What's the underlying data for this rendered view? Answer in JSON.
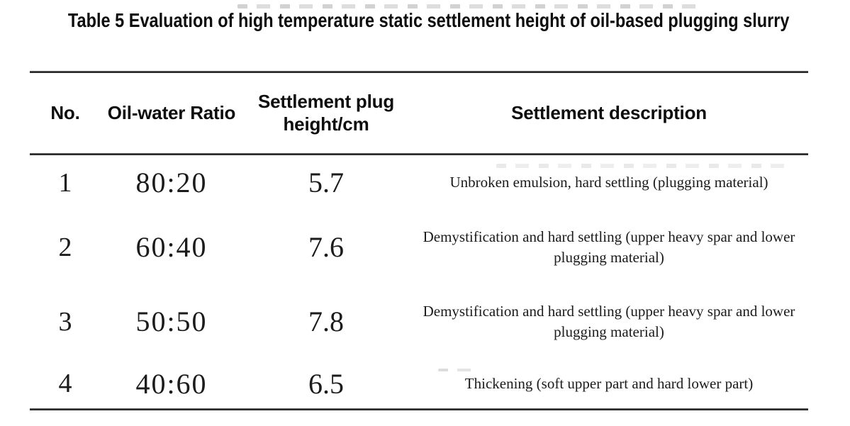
{
  "title": "Table 5 Evaluation of high temperature static settlement height of oil-based plugging slurry",
  "table": {
    "headers": [
      "No.",
      "Oil-water Ratio",
      "Settlement plug height/cm",
      "Settlement description"
    ],
    "rows": [
      {
        "no": "1",
        "ratio": "80:20",
        "height": "5.7",
        "description": "Unbroken emulsion, hard settling (plugging material)"
      },
      {
        "no": "2",
        "ratio": "60:40",
        "height": "7.6",
        "description": "Demystification and hard settling (upper heavy spar and lower plugging material)"
      },
      {
        "no": "3",
        "ratio": "50:50",
        "height": "7.8",
        "description": "Demystification and hard settling (upper heavy spar and lower plugging material)"
      },
      {
        "no": "4",
        "ratio": "40:60",
        "height": "6.5",
        "description": "Thickening (soft upper part and hard lower part)"
      }
    ]
  },
  "colors": {
    "text": "#1b1b1b",
    "heading": "#0d0d0d",
    "rule": "#2e2e2e",
    "background": "#ffffff"
  }
}
